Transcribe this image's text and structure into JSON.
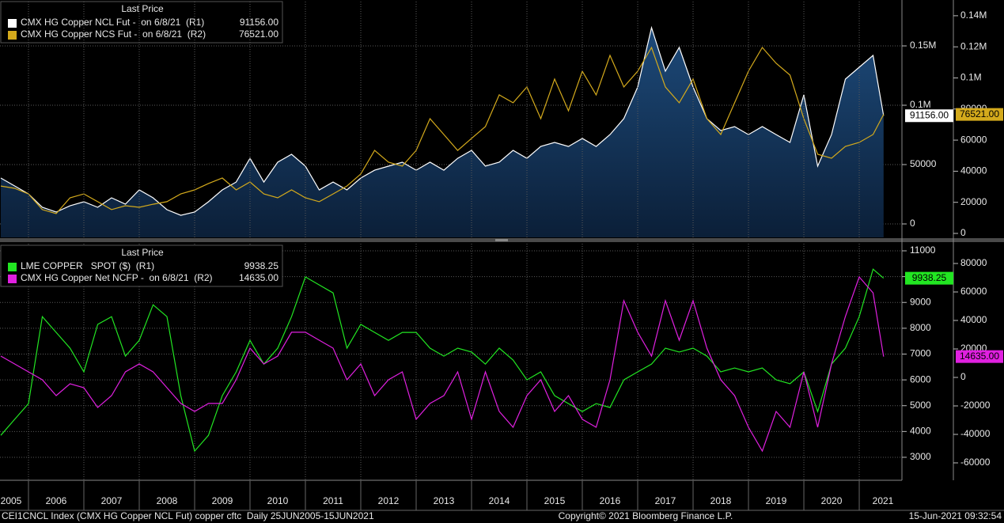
{
  "chart_data": [
    {
      "type": "line",
      "legend_title": "Last Price",
      "x": [
        2005.5,
        2005.75,
        2006,
        2006.25,
        2006.5,
        2006.75,
        2007,
        2007.25,
        2007.5,
        2007.75,
        2008,
        2008.25,
        2008.5,
        2008.75,
        2009,
        2009.25,
        2009.5,
        2009.75,
        2010,
        2010.25,
        2010.5,
        2010.75,
        2011,
        2011.25,
        2011.5,
        2011.75,
        2012,
        2012.25,
        2012.5,
        2012.75,
        2013,
        2013.25,
        2013.5,
        2013.75,
        2014,
        2014.25,
        2014.5,
        2014.75,
        2015,
        2015.25,
        2015.5,
        2015.75,
        2016,
        2016.25,
        2016.5,
        2016.75,
        2017,
        2017.25,
        2017.5,
        2017.75,
        2018,
        2018.25,
        2018.5,
        2018.75,
        2019,
        2019.25,
        2019.5,
        2019.75,
        2020,
        2020.25,
        2020.5,
        2020.75,
        2021,
        2021.25,
        2021.44
      ],
      "xlim": [
        2005.486,
        2021.771
      ],
      "ylim": [
        -11333,
        187333
      ],
      "yticks": [
        0,
        50000,
        {
          "value": 100000,
          "label": "0.1M"
        },
        {
          "value": 150000,
          "label": "0.15M"
        }
      ],
      "y2lim": [
        -2545,
        149100
      ],
      "y2ticks": [
        0,
        20000,
        40000,
        60000,
        80000,
        {
          "value": 100000,
          "label": "0.1M"
        },
        {
          "value": 120000,
          "label": "0.12M"
        },
        {
          "value": 140000,
          "label": "0.14M"
        }
      ],
      "grid": true,
      "series": [
        {
          "name": "CMX HG Copper NCL Fut -  on 6/8/21  (R1)",
          "color": "#ffffff",
          "area": true,
          "last_label": "91156.00",
          "values": [
            38700,
            32000,
            25300,
            14000,
            10000,
            15300,
            18700,
            14000,
            22000,
            16700,
            28700,
            22000,
            12000,
            7300,
            10000,
            18700,
            28700,
            35300,
            55300,
            35300,
            52000,
            58700,
            48700,
            28700,
            35300,
            28700,
            38700,
            45300,
            48700,
            52000,
            45300,
            52000,
            45300,
            55300,
            62000,
            48700,
            52000,
            62000,
            55300,
            65300,
            68700,
            65300,
            72000,
            65300,
            75300,
            88700,
            115300,
            165300,
            128700,
            148700,
            115300,
            88700,
            78700,
            82000,
            75300,
            82000,
            75300,
            68700,
            108700,
            48700,
            75300,
            122000,
            132000,
            142000,
            91156
          ]
        },
        {
          "name": "CMX HG Copper NCS Fut -  on 6/8/21  (R2)",
          "color": "#d4aa1c",
          "axis": "y2",
          "last_label": "76521.00",
          "values": [
            30500,
            29000,
            25400,
            15300,
            12700,
            22900,
            25400,
            20400,
            15300,
            17800,
            16800,
            18800,
            20400,
            25400,
            28000,
            32100,
            35600,
            28000,
            33100,
            25400,
            22900,
            28000,
            22900,
            20400,
            25400,
            30500,
            38200,
            53400,
            45800,
            43300,
            53400,
            73800,
            63600,
            53400,
            61100,
            68700,
            89100,
            84000,
            94200,
            73800,
            99300,
            78900,
            104300,
            89100,
            114500,
            94200,
            104300,
            119600,
            94200,
            84000,
            99300,
            73800,
            63600,
            84000,
            104300,
            119600,
            109400,
            101800,
            73800,
            50900,
            48400,
            56000,
            58500,
            63600,
            76521
          ]
        }
      ]
    },
    {
      "type": "line",
      "legend_title": "Last Price",
      "x": [
        2005.5,
        2005.75,
        2006,
        2006.25,
        2006.5,
        2006.75,
        2007,
        2007.25,
        2007.5,
        2007.75,
        2008,
        2008.25,
        2008.5,
        2008.75,
        2009,
        2009.25,
        2009.5,
        2009.75,
        2010,
        2010.25,
        2010.5,
        2010.75,
        2011,
        2011.25,
        2011.5,
        2011.75,
        2012,
        2012.25,
        2012.5,
        2012.75,
        2013,
        2013.25,
        2013.5,
        2013.75,
        2014,
        2014.25,
        2014.5,
        2014.75,
        2015,
        2015.25,
        2015.5,
        2015.75,
        2016,
        2016.25,
        2016.5,
        2016.75,
        2017,
        2017.25,
        2017.5,
        2017.75,
        2018,
        2018.25,
        2018.5,
        2018.75,
        2019,
        2019.25,
        2019.5,
        2019.75,
        2020,
        2020.25,
        2020.5,
        2020.75,
        2021,
        2021.25,
        2021.44
      ],
      "xlim": [
        2005.486,
        2021.771
      ],
      "xticks": [
        2005,
        2006,
        2007,
        2008,
        2009,
        2010,
        2011,
        2012,
        2013,
        2014,
        2015,
        2016,
        2017,
        2018,
        2019,
        2020,
        2021
      ],
      "ylim": [
        2110,
        11276
      ],
      "yticks": [
        3000,
        4000,
        5000,
        6000,
        7000,
        8000,
        9000,
        10000,
        11000
      ],
      "y2lim": [
        -72222,
        93889
      ],
      "y2ticks": [
        -60000,
        -40000,
        -20000,
        0,
        20000,
        40000,
        60000,
        80000
      ],
      "grid": true,
      "series": [
        {
          "name": "LME COPPER   SPOT ($)  (R1)",
          "color": "#22e622",
          "last_label": "9938.25",
          "values": [
            3850,
            4470,
            5080,
            8450,
            7840,
            7230,
            6310,
            8150,
            8450,
            6920,
            7530,
            8910,
            8450,
            5390,
            3240,
            3850,
            5390,
            6310,
            7530,
            6610,
            7230,
            8450,
            9990,
            9680,
            9370,
            7230,
            8150,
            7840,
            7530,
            7840,
            7840,
            7230,
            6920,
            7230,
            7080,
            6610,
            7230,
            6770,
            6000,
            6310,
            5390,
            5080,
            4770,
            5080,
            4930,
            6000,
            6310,
            6610,
            7230,
            7080,
            7230,
            6920,
            6310,
            6460,
            6310,
            6460,
            6000,
            5850,
            6310,
            4770,
            6610,
            7230,
            8450,
            10290,
            9938.25
          ]
        },
        {
          "name": "CMX HG Copper Net NCFP -  on 6/8/21  (R2)",
          "color": "#e020e0",
          "axis": "y2",
          "last_label": "14635.00",
          "values": [
            15000,
            9440,
            3890,
            -1670,
            -12780,
            -4440,
            -7220,
            -21100,
            -12780,
            3890,
            9440,
            3890,
            -7220,
            -18300,
            -23900,
            -18300,
            -18300,
            -1670,
            20560,
            9440,
            15000,
            31700,
            31700,
            26100,
            20560,
            -1670,
            9440,
            -12780,
            -1670,
            3890,
            -29400,
            -18300,
            -12780,
            3890,
            -29400,
            3890,
            -23900,
            -35000,
            -12780,
            -1670,
            -23900,
            -12780,
            -29400,
            -35000,
            -1670,
            53900,
            31700,
            15000,
            53900,
            26100,
            53900,
            20560,
            -1670,
            -12780,
            -35000,
            -51700,
            -23900,
            -35000,
            3890,
            -35000,
            9440,
            42800,
            70560,
            59400,
            14635
          ]
        }
      ]
    }
  ],
  "footer": {
    "left": "CEI1CNCL Index (CMX HG Copper NCL Fut) copper cftc  Daily 25JUN2005-15JUN2021",
    "center": "Copyright© 2021 Bloomberg Finance L.P.",
    "right": "15-Jun-2021 09:32:54"
  }
}
